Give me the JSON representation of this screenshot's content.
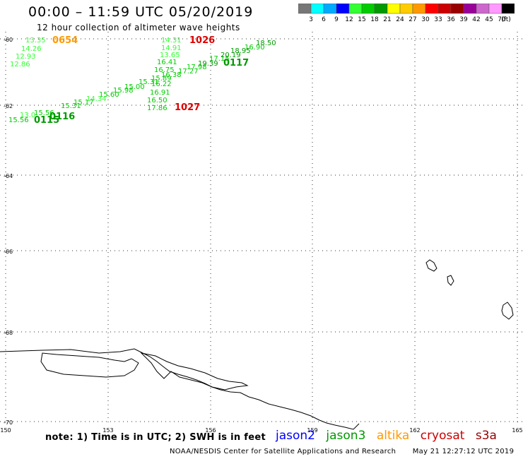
{
  "title": "00:00 – 11:59 UTC 05/20/2019",
  "subtitle": "12 hour collection of altimeter wave heights",
  "colorbar": {
    "colors": [
      "#777777",
      "#00ffff",
      "#00aaff",
      "#0000ff",
      "#33ff33",
      "#00cc00",
      "#009900",
      "#ffff00",
      "#ffcc00",
      "#ff9900",
      "#ff0000",
      "#cc0000",
      "#990000",
      "#990099",
      "#cc66cc",
      "#ff99ff",
      "#000000"
    ],
    "labels": [
      "3",
      "6",
      "9",
      "12",
      "15",
      "18",
      "21",
      "24",
      "27",
      "30",
      "33",
      "36",
      "39",
      "42",
      "45",
      "70"
    ],
    "unit": "(ft)"
  },
  "axes": {
    "lat_labels": [
      "-60",
      "-62",
      "-64",
      "-66",
      "-68",
      "-70"
    ],
    "lon_labels": [
      "150",
      "153",
      "156",
      "159",
      "162",
      "165"
    ]
  },
  "time_labels": [
    {
      "text": "0654",
      "color": "#ff9900"
    },
    {
      "text": "1026",
      "color": "#dd0000"
    },
    {
      "text": "1027",
      "color": "#dd0000"
    },
    {
      "text": "0117",
      "color": "#009900"
    },
    {
      "text": "0115",
      "color": "#009900"
    },
    {
      "text": "0116",
      "color": "#009900"
    }
  ],
  "wave_heights": [
    {
      "text": "13.35",
      "color": "#33ff33"
    },
    {
      "text": "14.26",
      "color": "#33ff33"
    },
    {
      "text": "12.93",
      "color": "#33ff33"
    },
    {
      "text": "12.86",
      "color": "#33ff33"
    },
    {
      "text": "14.31",
      "color": "#33ff33"
    },
    {
      "text": "14.91",
      "color": "#33ff33"
    },
    {
      "text": "13.65",
      "color": "#33ff33"
    },
    {
      "text": "16.41",
      "color": "#00cc00"
    },
    {
      "text": "16.75",
      "color": "#00cc00"
    },
    {
      "text": "17.27",
      "color": "#00cc00"
    },
    {
      "text": "17.98",
      "color": "#00cc00"
    },
    {
      "text": "19.39",
      "color": "#009900"
    },
    {
      "text": "17.15",
      "color": "#00cc00"
    },
    {
      "text": "20.19",
      "color": "#009900"
    },
    {
      "text": "18.95",
      "color": "#009900"
    },
    {
      "text": "16.90",
      "color": "#00cc00"
    },
    {
      "text": "18.50",
      "color": "#009900"
    },
    {
      "text": "16.38",
      "color": "#00cc00"
    },
    {
      "text": "15.89",
      "color": "#00cc00"
    },
    {
      "text": "16.22",
      "color": "#00cc00"
    },
    {
      "text": "15.31",
      "color": "#00cc00"
    },
    {
      "text": "15.00",
      "color": "#00cc00"
    },
    {
      "text": "16.91",
      "color": "#00cc00"
    },
    {
      "text": "16.50",
      "color": "#00cc00"
    },
    {
      "text": "17.86",
      "color": "#00cc00"
    },
    {
      "text": "15.98",
      "color": "#00cc00"
    },
    {
      "text": "15.60",
      "color": "#00cc00"
    },
    {
      "text": "14.34",
      "color": "#33ff33"
    },
    {
      "text": "15.17",
      "color": "#00cc00"
    },
    {
      "text": "15.31",
      "color": "#00cc00"
    },
    {
      "text": "15.56",
      "color": "#00cc00"
    },
    {
      "text": "15.56",
      "color": "#00cc00"
    },
    {
      "text": "13.0",
      "color": "#33ff33"
    }
  ],
  "note": "note: 1) Time is in UTC; 2) SWH is in feet",
  "legend": [
    {
      "label": "jason2",
      "color": "#0000ff"
    },
    {
      "label": "jason3",
      "color": "#009900"
    },
    {
      "label": "altika",
      "color": "#ff9900"
    },
    {
      "label": "cryosat",
      "color": "#cc0000"
    },
    {
      "label": "s3a",
      "color": "#990000"
    }
  ],
  "credit": "NOAA/NESDIS Center for Satellite Applications and Research",
  "timestamp": "May 21 12:27:12 UTC 2019"
}
